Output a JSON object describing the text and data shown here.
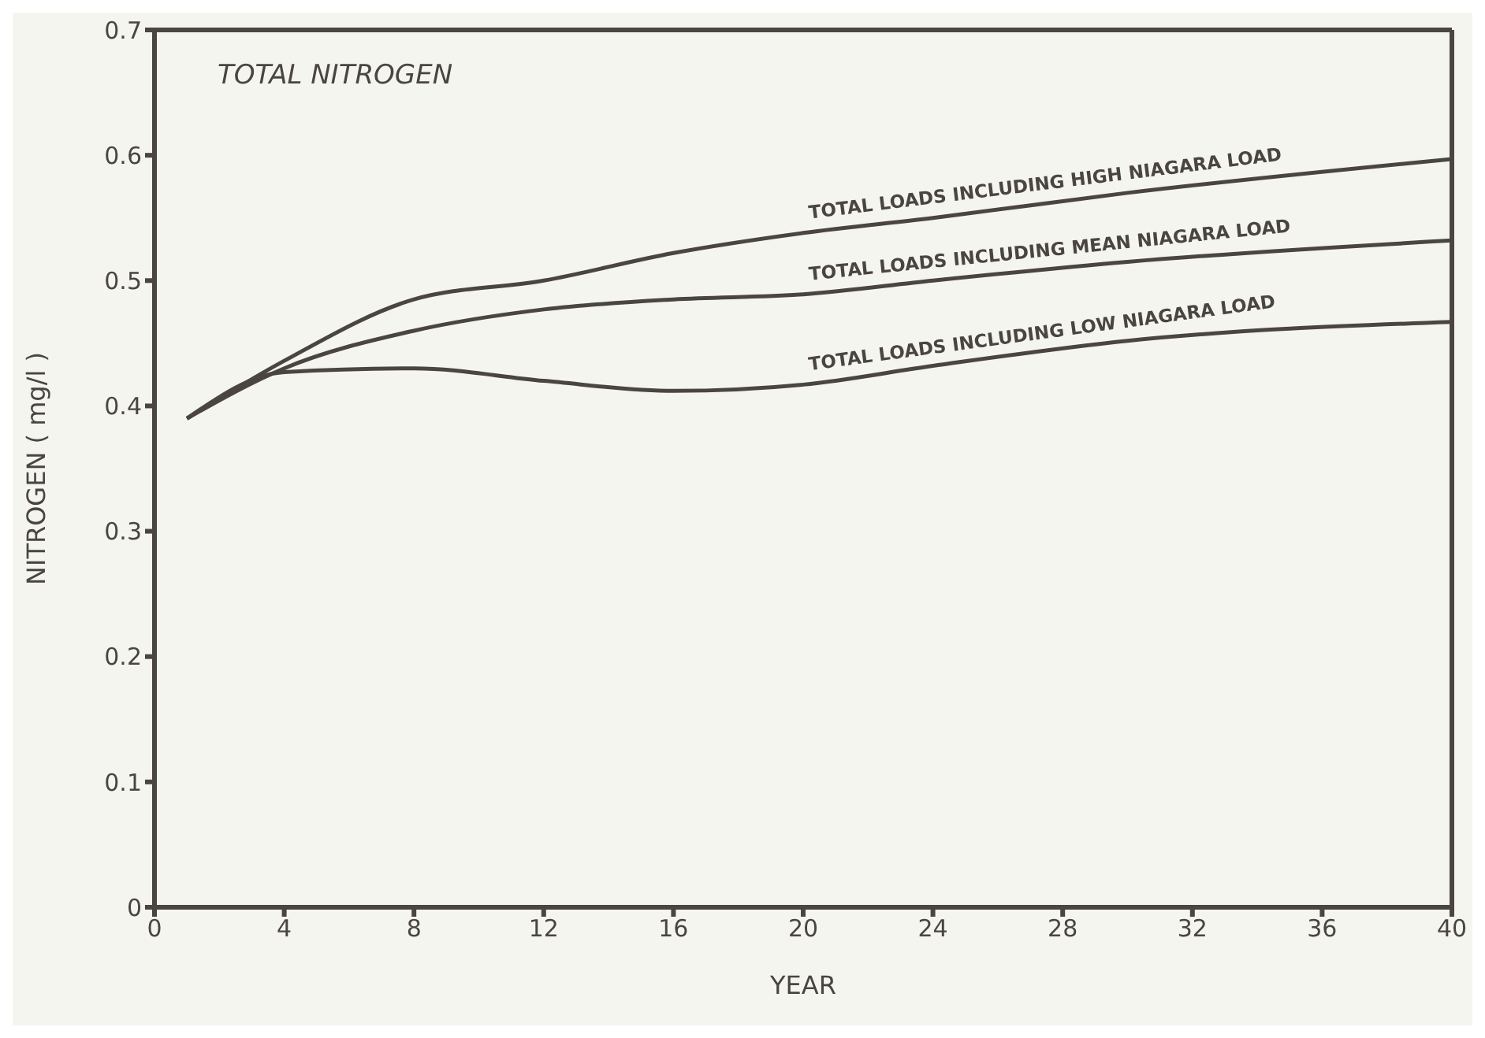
{
  "chart_data": {
    "type": "line",
    "xlabel": "YEAR",
    "ylabel": "NITROGEN ( mg/l )",
    "annotations": [
      "TOTAL NITROGEN"
    ],
    "x": [
      1,
      4,
      8,
      12,
      16,
      20,
      24,
      30,
      40
    ],
    "series": [
      {
        "name": "TOTAL LOADS INCLUDING HIGH NIAGARA LOAD",
        "color": "#4a4540",
        "values": [
          0.39,
          0.436,
          0.485,
          0.5,
          0.522,
          0.538,
          0.55,
          0.57,
          0.597
        ]
      },
      {
        "name": "TOTAL LOADS INCLUDING MEAN NIAGARA LOAD",
        "color": "#4a4540",
        "values": [
          0.39,
          0.43,
          0.46,
          0.477,
          0.485,
          0.489,
          0.5,
          0.515,
          0.532
        ]
      },
      {
        "name": "TOTAL LOADS INCLUDING LOW NIAGARA LOAD",
        "color": "#4a4540",
        "values": [
          0.39,
          0.427,
          0.43,
          0.42,
          0.412,
          0.417,
          0.432,
          0.452,
          0.467
        ]
      }
    ],
    "xlim": [
      0,
      40
    ],
    "xticks": [
      0,
      4,
      8,
      12,
      16,
      20,
      24,
      28,
      32,
      36,
      40
    ],
    "ylim": [
      0,
      0.7
    ],
    "yticks": [
      0,
      0.1,
      0.2,
      0.3,
      0.4,
      0.5,
      0.6,
      0.7
    ],
    "grid": false,
    "legend": false,
    "marker": "none",
    "line_style": "solid"
  }
}
